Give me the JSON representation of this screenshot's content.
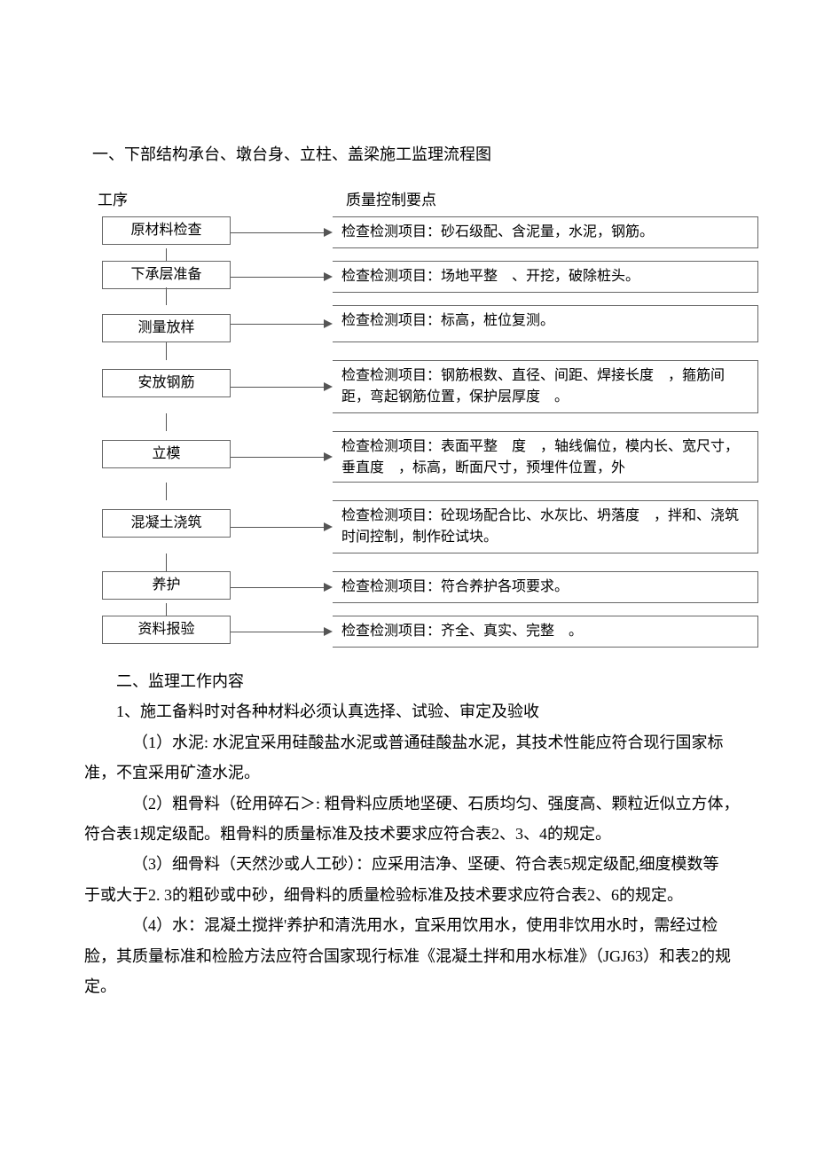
{
  "section1_title": "一、下部结构承台、墩台身、立柱、盖梁施工监理流程图",
  "flow_header_left": "工序",
  "flow_header_right": "质量控制要点",
  "steps": [
    {
      "name": "原材料检查",
      "ctrl": "检查检测项目：砂石级配、含泥量，水泥，钢筋。",
      "tall": false
    },
    {
      "name": "下承层准备",
      "ctrl": "检查检测项目：场地平整　、开挖，破除桩头。",
      "tall": false
    },
    {
      "name": "测量放样",
      "ctrl": "检查检测项目：标高，桩位复测。",
      "tall": true
    },
    {
      "name": "安放钢筋",
      "ctrl": "检查检测项目：钢筋根数、直径、间距、焊接长度　，箍筋间距，弯起钢筋位置，保护层厚度　。",
      "tall": true
    },
    {
      "name": "立模",
      "ctrl": "检查检测项目：表面平整　度　，轴线偏位，模内长、宽尺寸，垂直度　，标高，断面尺寸，预埋件位置，外",
      "tall": true,
      "clipped": true
    },
    {
      "name": "混凝土浇筑",
      "ctrl": "检查检测项目：砼现场配合比、水灰比、坍落度　，拌和、浇筑时间控制，制作砼试块。",
      "tall": true
    },
    {
      "name": "养护",
      "ctrl": "检查检测项目：符合养护各项要求。",
      "tall": false
    },
    {
      "name": "资料报验",
      "ctrl": "检查检测项目：齐全、真实、完整　。",
      "tall": false
    }
  ],
  "section2_title": "二、监理工作内容",
  "para1": "1、施工备料时对各种材料必须认真选择、试验、审定及验收",
  "para2": "（1）水泥: 水泥宜采用硅酸盐水泥或普通硅酸盐水泥，其技术性能应符合现行国家标",
  "para2b": "准，不宜采用矿渣水泥。",
  "para3": "（2）粗骨料（砼用碎石＞: 粗骨料应质地坚硬、石质均匀、强度高、颗粒近似立方体，",
  "para3b": "符合表1规定级配。粗骨料的质量标准及技术要求应符合表2、3、4的规定。",
  "para4": "（3）细骨料（天然沙或人工砂）：应采用洁净、坚硬、符合表5规定级配,细度模数等",
  "para4b": "于或大于2. 3的粗砂或中砂，细骨料的质量检验标准及技术要求应符合表2、6的规定。",
  "para5": "（4）水：混凝土搅拌'养护和清洗用水，宜采用饮用水，使用非饮用水时，需经过检",
  "para5b": "脸，其质量标准和检脸方法应符合国家现行标准《混凝土拌和用水标准》（JGJ63）和表2的规",
  "para5c": "定。"
}
